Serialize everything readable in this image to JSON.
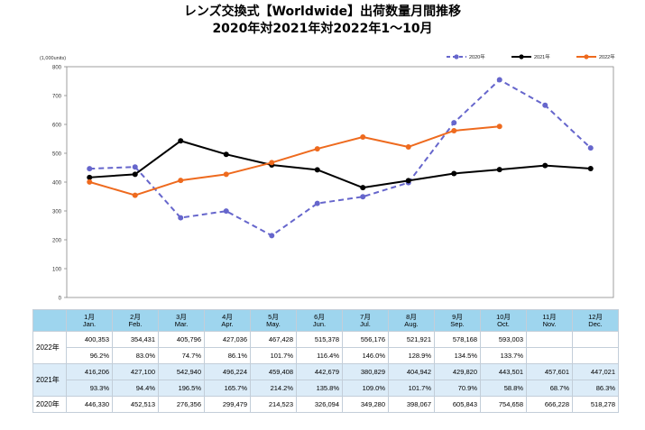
{
  "title_line1": "レンズ交換式【Worldwide】出荷数量月間推移",
  "title_line2": "2020年対2021年対2022年1～10月",
  "chart_data": {
    "type": "line",
    "unit_label": "(1,000units)",
    "ylim": [
      0,
      800
    ],
    "yticks": [
      0,
      100,
      200,
      300,
      400,
      500,
      600,
      700,
      800
    ],
    "categories": [
      "1",
      "2",
      "3",
      "4",
      "5",
      "6",
      "7",
      "8",
      "9",
      "10",
      "11",
      "12"
    ],
    "legend_position": "top-right",
    "series": [
      {
        "name": "2020年",
        "color": "#6666cc",
        "style": "dashed",
        "values": [
          446.33,
          452.513,
          276.356,
          299.479,
          214.523,
          326.094,
          349.28,
          398.067,
          605.843,
          754.658,
          666.228,
          518.278
        ]
      },
      {
        "name": "2021年",
        "color": "#000000",
        "style": "solid",
        "values": [
          416.206,
          427.1,
          542.94,
          496.224,
          459.408,
          442.679,
          380.829,
          404.942,
          429.82,
          443.501,
          457.601,
          447.021
        ]
      },
      {
        "name": "2022年",
        "color": "#ee6a1e",
        "style": "solid",
        "values": [
          400.353,
          354.431,
          405.796,
          427.036,
          467.428,
          515.378,
          556.176,
          521.921,
          578.168,
          593.003,
          null,
          null
        ]
      }
    ]
  },
  "table": {
    "months": [
      {
        "num": "1月",
        "en": "Jan."
      },
      {
        "num": "2月",
        "en": "Feb."
      },
      {
        "num": "3月",
        "en": "Mar."
      },
      {
        "num": "4月",
        "en": "Apr."
      },
      {
        "num": "5月",
        "en": "May."
      },
      {
        "num": "6月",
        "en": "Jun."
      },
      {
        "num": "7月",
        "en": "Jul."
      },
      {
        "num": "8月",
        "en": "Aug."
      },
      {
        "num": "9月",
        "en": "Sep."
      },
      {
        "num": "10月",
        "en": "Oct."
      },
      {
        "num": "11月",
        "en": "Nov."
      },
      {
        "num": "12月",
        "en": "Dec."
      }
    ],
    "rows": [
      {
        "label": "2022年",
        "values": [
          "400,353",
          "354,431",
          "405,796",
          "427,036",
          "467,428",
          "515,378",
          "556,176",
          "521,921",
          "578,168",
          "593,003",
          "",
          ""
        ],
        "ratios": [
          "96.2%",
          "83.0%",
          "74.7%",
          "86.1%",
          "101.7%",
          "116.4%",
          "146.0%",
          "128.9%",
          "134.5%",
          "133.7%",
          "",
          ""
        ]
      },
      {
        "label": "2021年",
        "values": [
          "416,206",
          "427,100",
          "542,940",
          "496,224",
          "459,408",
          "442,679",
          "380,829",
          "404,942",
          "429,820",
          "443,501",
          "457,601",
          "447,021"
        ],
        "ratios": [
          "93.3%",
          "94.4%",
          "196.5%",
          "165.7%",
          "214.2%",
          "135.8%",
          "109.0%",
          "101.7%",
          "70.9%",
          "58.8%",
          "68.7%",
          "86.3%"
        ]
      },
      {
        "label": "2020年",
        "values": [
          "446,330",
          "452,513",
          "276,356",
          "299,479",
          "214,523",
          "326,094",
          "349,280",
          "398,067",
          "605,843",
          "754,658",
          "666,228",
          "518,278"
        ]
      }
    ]
  }
}
